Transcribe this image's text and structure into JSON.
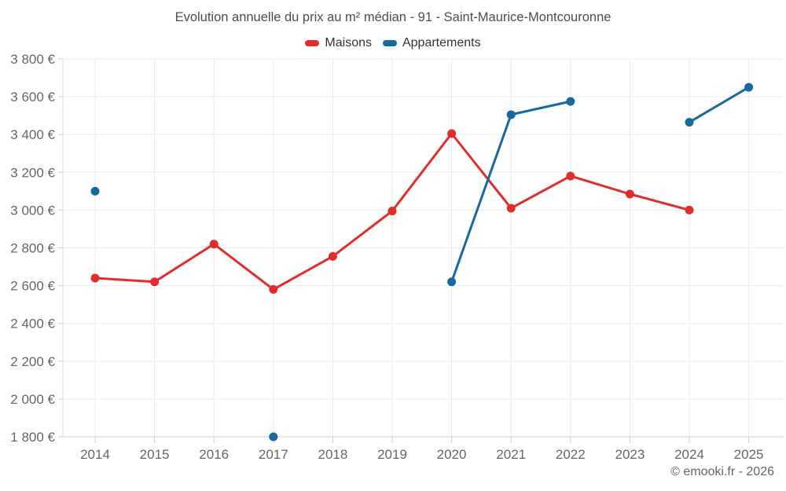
{
  "page": {
    "title": "Evolution annuelle du prix au m² médian - 91 - Saint-Maurice-Montcouronne",
    "footer": "© emooki.fr - 2026"
  },
  "legend": {
    "items": [
      {
        "label": "Maisons",
        "color": "#e12c2c"
      },
      {
        "label": "Appartements",
        "color": "#17699e"
      }
    ]
  },
  "chart_data": {
    "type": "line",
    "title": "Evolution annuelle du prix au m² médian - 91 - Saint-Maurice-Montcouronne",
    "xlabel": "",
    "ylabel": "",
    "x": [
      2014,
      2015,
      2016,
      2017,
      2018,
      2019,
      2020,
      2021,
      2022,
      2023,
      2024,
      2025
    ],
    "xticks": [
      "2014",
      "2015",
      "2016",
      "2017",
      "2018",
      "2019",
      "2020",
      "2021",
      "2022",
      "2023",
      "2024",
      "2025"
    ],
    "yticks": [
      "1 800 €",
      "2 000 €",
      "2 200 €",
      "2 400 €",
      "2 600 €",
      "2 800 €",
      "3 000 €",
      "3 200 €",
      "3 400 €",
      "3 600 €",
      "3 800 €"
    ],
    "ylim": [
      1800,
      3800
    ],
    "ytick_step": 200,
    "currency_suffix": " €",
    "grid": true,
    "legend_position": "top",
    "series": [
      {
        "name": "Maisons",
        "color": "#e12c2c",
        "values": [
          2640,
          2620,
          2820,
          2580,
          2755,
          2995,
          3405,
          3010,
          3180,
          3085,
          3000,
          null
        ]
      },
      {
        "name": "Appartements",
        "color": "#17699e",
        "values": [
          3100,
          null,
          null,
          1800,
          null,
          null,
          2620,
          3505,
          3575,
          null,
          3465,
          3650
        ]
      }
    ]
  }
}
